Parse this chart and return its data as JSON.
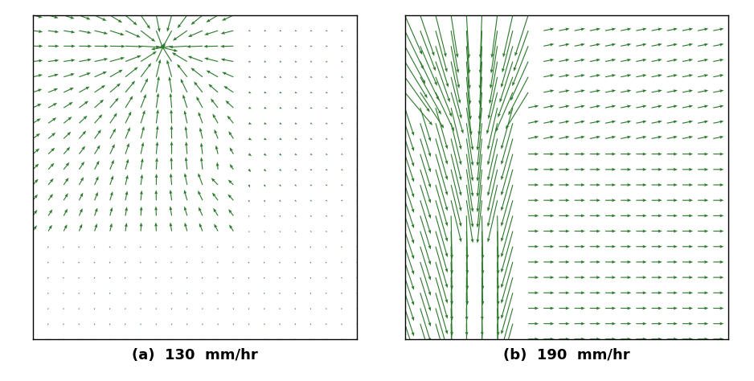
{
  "title_a": "(a)  130  mm/hr",
  "title_b": "(b)  190  mm/hr",
  "arrow_color": "#2d7a2d",
  "bg_color": "#ffffff",
  "grid_n": 22,
  "figsize": [
    9.38,
    4.74
  ],
  "dpi": 100
}
